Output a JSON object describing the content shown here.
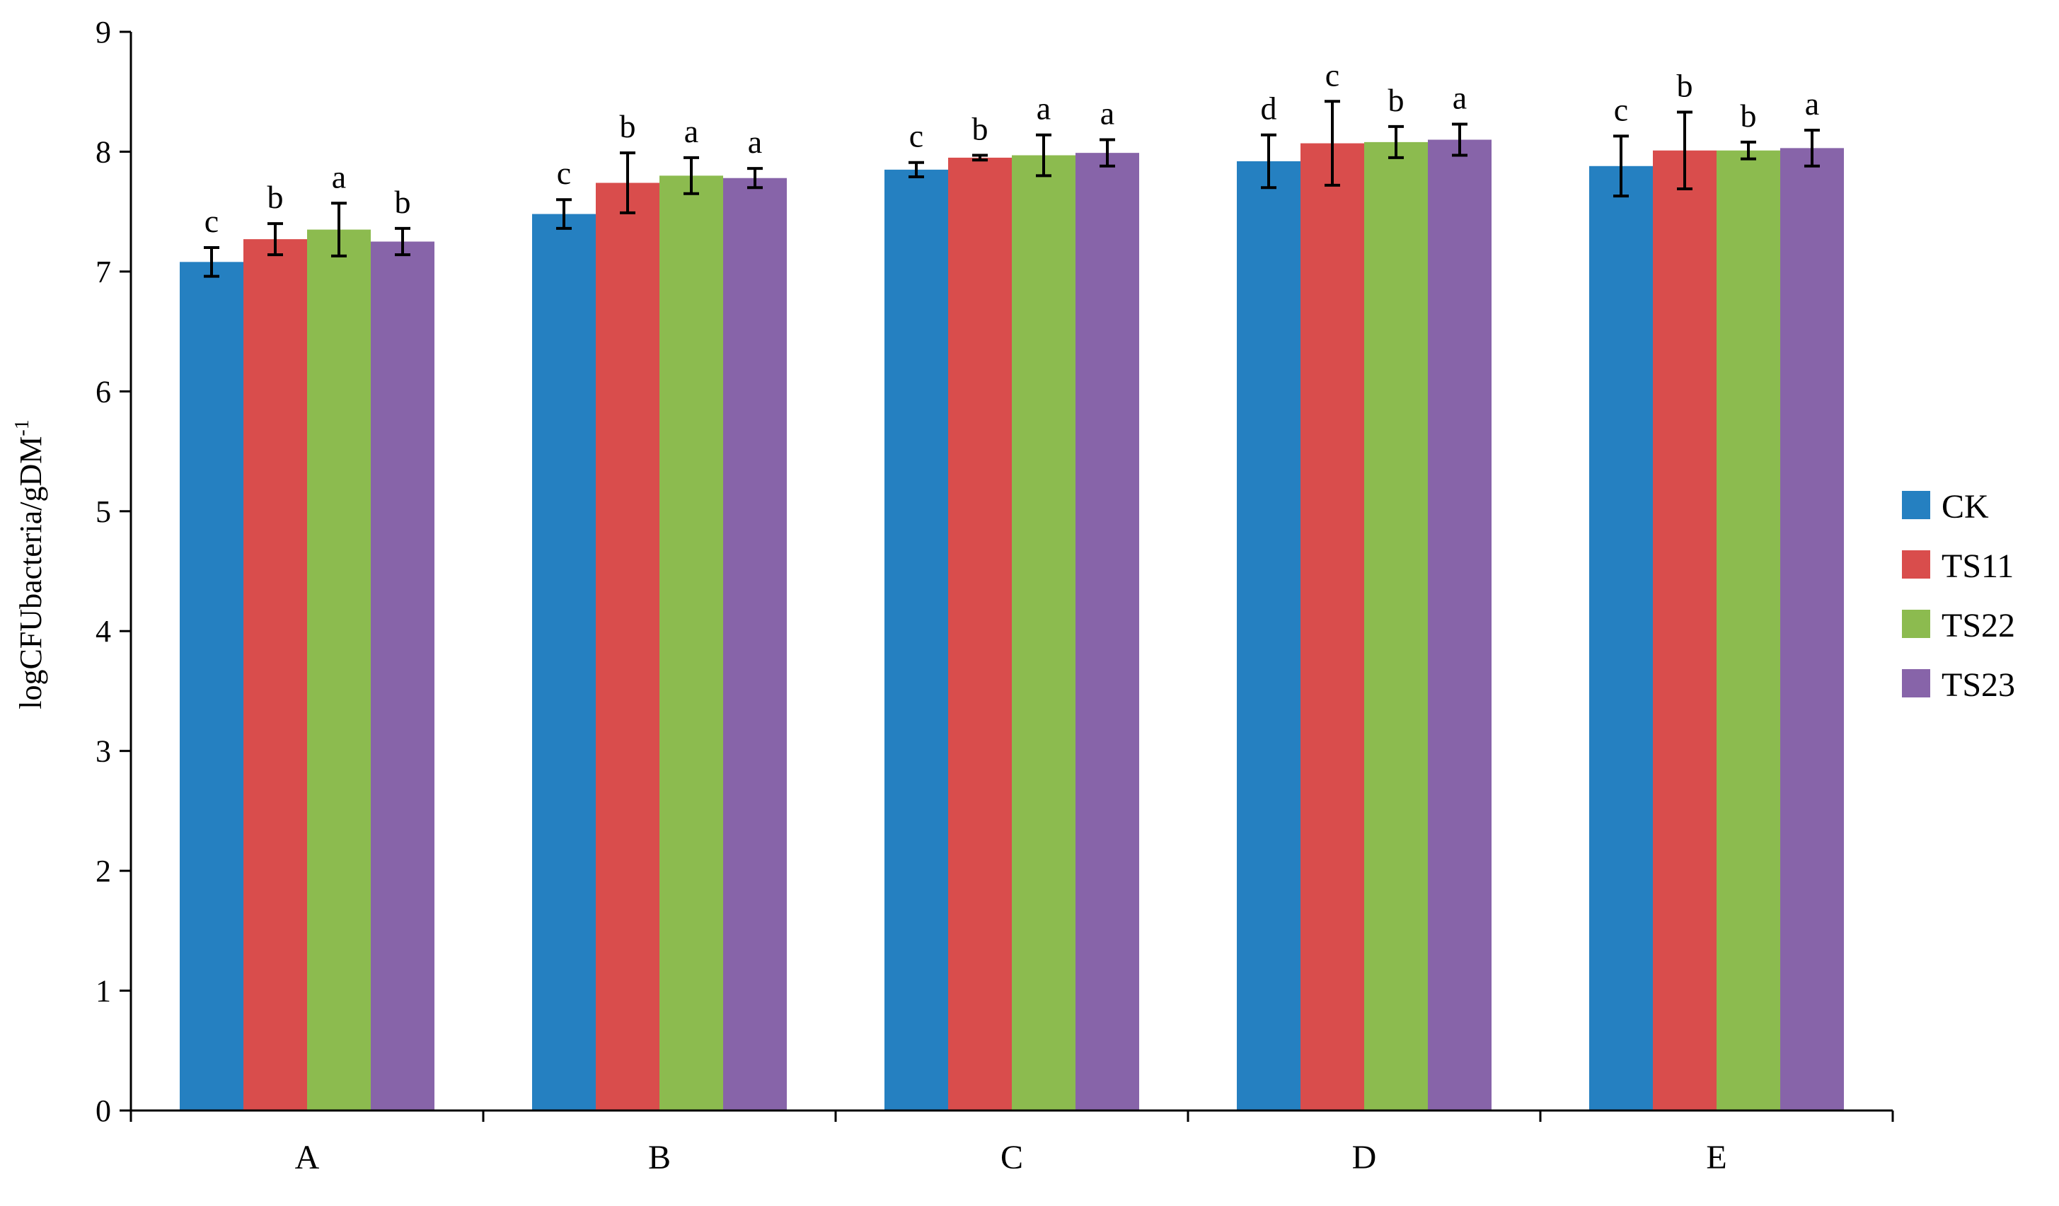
{
  "chart_data": {
    "type": "bar",
    "title": "",
    "xlabel": "",
    "ylabel": "logCFUbacteria/gDM",
    "ylabel_superscript": "-1",
    "ylim": [
      0,
      9
    ],
    "yticks": [
      "0",
      "1",
      "2",
      "3",
      "4",
      "5",
      "6",
      "7",
      "8",
      "9"
    ],
    "grid": false,
    "legend_position": "right",
    "categories": [
      "A",
      "B",
      "C",
      "D",
      "E"
    ],
    "series": [
      {
        "name": "CK",
        "color": "#2580C1",
        "values": [
          7.08,
          7.48,
          7.85,
          7.92,
          7.88
        ],
        "errors": [
          0.12,
          0.12,
          0.06,
          0.22,
          0.25
        ],
        "letters": [
          "c",
          "c",
          "c",
          "d",
          "c"
        ]
      },
      {
        "name": "TS11",
        "color": "#D94D4C",
        "values": [
          7.27,
          7.74,
          7.95,
          8.07,
          8.01
        ],
        "errors": [
          0.13,
          0.25,
          0.02,
          0.35,
          0.32
        ],
        "letters": [
          "b",
          "b",
          "b",
          "c",
          "b"
        ]
      },
      {
        "name": "TS22",
        "color": "#8CBB4F",
        "values": [
          7.35,
          7.8,
          7.97,
          8.08,
          8.01
        ],
        "errors": [
          0.22,
          0.15,
          0.17,
          0.13,
          0.07
        ],
        "letters": [
          "a",
          "a",
          "a",
          "b",
          "b"
        ]
      },
      {
        "name": "TS23",
        "color": "#8764A9",
        "values": [
          7.25,
          7.78,
          7.99,
          8.1,
          8.03
        ],
        "errors": [
          0.11,
          0.08,
          0.11,
          0.13,
          0.15
        ],
        "letters": [
          "b",
          "a",
          "a",
          "a",
          "a"
        ]
      }
    ]
  }
}
